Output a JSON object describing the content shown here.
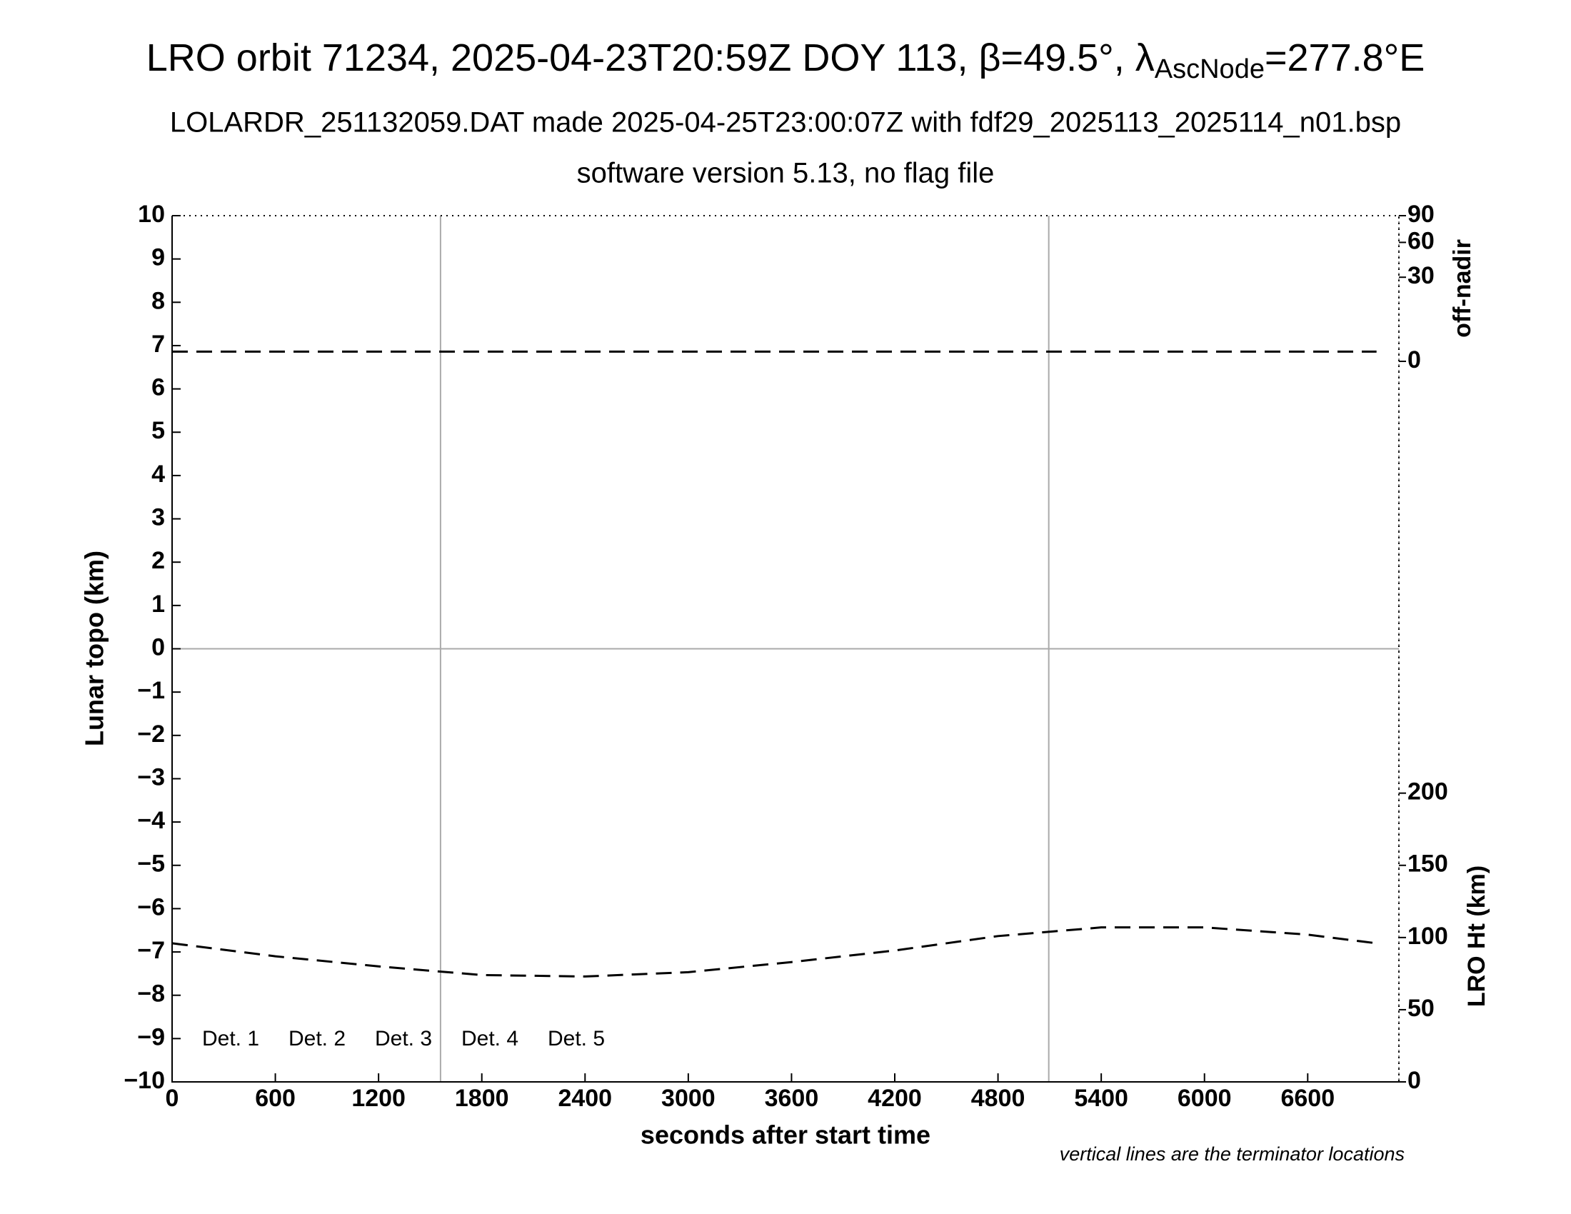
{
  "chart_data": {
    "type": "line",
    "title_parts": [
      "LRO orbit 71234, 2025-04-23T20:59Z DOY 113, β=49.5°, λ",
      "AscNode",
      "=277.8°E"
    ],
    "subtitle": "LOLARDR_251132059.DAT made 2025-04-25T23:00:07Z with fdf29_2025113_2025114_n01.bsp",
    "subtitle2": "software version 5.13, no flag file",
    "xlabel": "seconds after start time",
    "ylabel": "Lunar topo (km)",
    "y2label": "off-nadir",
    "y3label": "LRO Ht (km)",
    "note": "vertical lines are the terminator locations",
    "x": [
      0,
      600,
      1200,
      1800,
      2400,
      3000,
      3600,
      4200,
      4800,
      5400,
      6000,
      6600,
      7000
    ],
    "xlim": [
      0,
      7130
    ],
    "xticks": [
      0,
      600,
      1200,
      1800,
      2400,
      3000,
      3600,
      4200,
      4800,
      5400,
      6000,
      6600
    ],
    "ylim": [
      -10,
      10
    ],
    "yticks": [
      {
        "value": -10,
        "label": "−10"
      },
      {
        "value": -9,
        "label": "−9"
      },
      {
        "value": -8,
        "label": "−8"
      },
      {
        "value": -7,
        "label": "−7"
      },
      {
        "value": -6,
        "label": "−6"
      },
      {
        "value": -5,
        "label": "−5"
      },
      {
        "value": -4,
        "label": "−4"
      },
      {
        "value": -3,
        "label": "−3"
      },
      {
        "value": -2,
        "label": "−2"
      },
      {
        "value": -1,
        "label": "−1"
      },
      0,
      1,
      2,
      3,
      4,
      5,
      6,
      7,
      8,
      9,
      10
    ],
    "y2lim": [
      0,
      90
    ],
    "y2scale": "sqrt",
    "y2ticks": [
      0,
      30,
      60,
      90
    ],
    "y3lim": [
      0,
      600
    ],
    "y3ticks": [
      0,
      50,
      100,
      150,
      200
    ],
    "terminators": [
      1560,
      5095
    ],
    "series": [
      {
        "axis": "y2",
        "color": "#000000",
        "dash": true,
        "values": [
          0.4,
          0.4,
          0.4,
          0.4,
          0.4,
          0.4,
          0.4,
          0.4,
          0.4,
          0.4,
          0.4,
          0.4,
          0.4
        ]
      },
      {
        "axis": "y3",
        "color": "#000000",
        "dash": true,
        "values": [
          96,
          87,
          80,
          74,
          73,
          76,
          83,
          91,
          101,
          107,
          107,
          102,
          96
        ]
      }
    ],
    "legend": [
      {
        "name": "Det. 1",
        "color": "#000000"
      },
      {
        "name": "Det. 2",
        "color": "#0000ff"
      },
      {
        "name": "Det. 3",
        "color": "#00ff00"
      },
      {
        "name": "Det. 4",
        "color": "#ffa500"
      },
      {
        "name": "Det. 5",
        "color": "#ff0000"
      }
    ]
  }
}
